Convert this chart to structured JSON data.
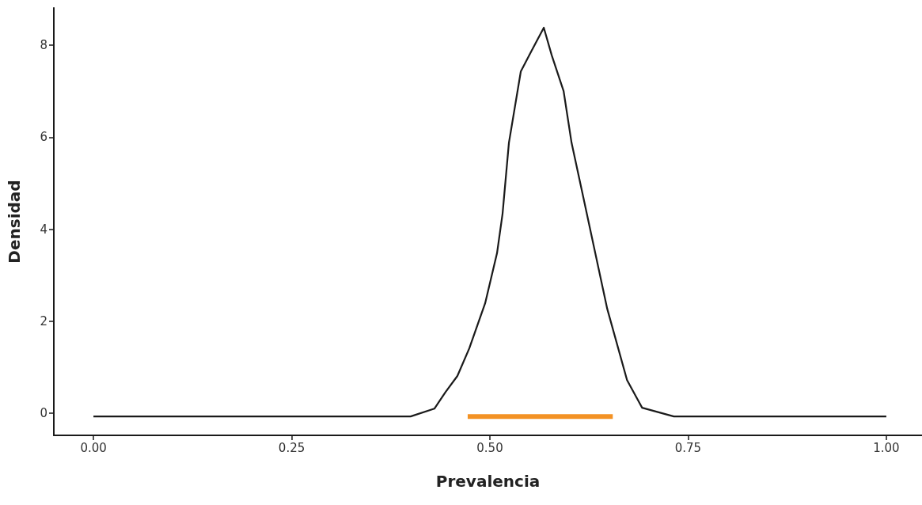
{
  "chart_data": {
    "type": "line",
    "xlabel": "Prevalencia",
    "ylabel": "Densidad",
    "xlim": [
      -0.05,
      1.045
    ],
    "ylim": [
      -0.48,
      8.81
    ],
    "xticks": [
      {
        "value": 0,
        "label": "0.00"
      },
      {
        "value": 0.25,
        "label": "0.25"
      },
      {
        "value": 0.5,
        "label": "0.50"
      },
      {
        "value": 0.75,
        "label": "0.75"
      },
      {
        "value": 1,
        "label": "1.00"
      }
    ],
    "yticks": [
      0,
      2,
      4,
      6,
      8
    ],
    "grid": false,
    "marker": "none",
    "line_style": "solid",
    "series": [
      {
        "color": "#1a1a1a",
        "x": [
          0,
          0.4,
          0.43,
          0.444,
          0.459,
          0.474,
          0.494,
          0.509,
          0.516,
          0.524,
          0.539,
          0.552,
          0.568,
          0.578,
          0.593,
          0.603,
          0.618,
          0.648,
          0.673,
          0.692,
          0.732,
          1
        ],
        "values": [
          -0.07,
          -0.07,
          0.1,
          0.46,
          0.81,
          1.41,
          2.39,
          3.48,
          4.34,
          5.88,
          7.43,
          7.86,
          8.38,
          7.78,
          7.0,
          5.88,
          4.68,
          2.27,
          0.72,
          0.12,
          -0.07,
          -0.07
        ]
      },
      {
        "color": "#f39224",
        "x": [
          0.472,
          0.655
        ],
        "values": [
          -0.07,
          -0.07
        ]
      }
    ]
  }
}
